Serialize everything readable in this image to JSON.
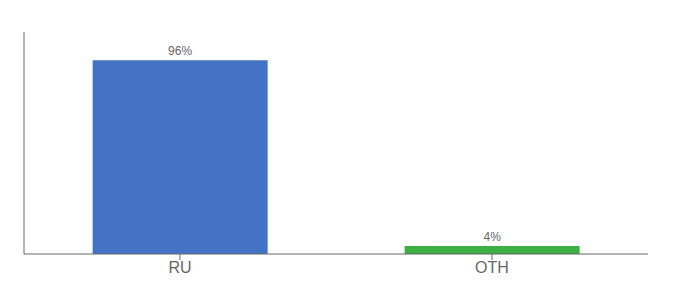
{
  "chart_data": {
    "type": "bar",
    "categories": [
      "RU",
      "OTH"
    ],
    "values": [
      96,
      4
    ],
    "value_labels": [
      "96%",
      "4%"
    ],
    "colors": [
      "#4472c4",
      "#3cb043"
    ],
    "ylim": [
      0,
      110
    ],
    "data_labels": true,
    "tick_labels": "x",
    "grid": false
  }
}
